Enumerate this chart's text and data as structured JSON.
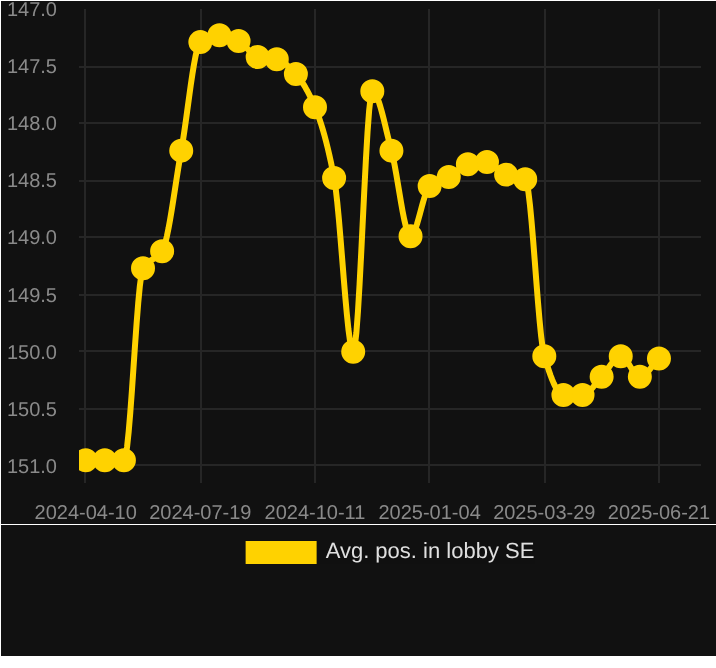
{
  "chart_data": {
    "type": "line",
    "categories": [
      "2024-04-10",
      null,
      null,
      null,
      null,
      null,
      "2024-07-19",
      null,
      null,
      null,
      null,
      null,
      "2024-10-11",
      null,
      null,
      null,
      null,
      null,
      "2025-01-04",
      null,
      null,
      null,
      null,
      null,
      "2025-03-29",
      null,
      null,
      null,
      null,
      null,
      "2025-06-21"
    ],
    "series": [
      {
        "name": "Avg. pos. in lobby SE",
        "color": "#ffd200",
        "values": [
          150.95,
          150.95,
          150.95,
          149.27,
          149.12,
          148.24,
          147.29,
          147.23,
          147.28,
          147.42,
          147.44,
          147.57,
          147.86,
          148.48,
          150.0,
          147.72,
          148.24,
          148.99,
          148.55,
          148.47,
          148.36,
          148.34,
          148.45,
          148.49,
          150.04,
          150.38,
          150.38,
          150.22,
          150.04,
          150.22,
          150.06
        ]
      }
    ],
    "ylim": [
      151.15,
      147.0
    ],
    "yticks": [
      {
        "value": 147,
        "label": "147.0"
      },
      {
        "value": 147.5,
        "label": "147.5"
      },
      {
        "value": 148,
        "label": "148.0"
      },
      {
        "value": 148.5,
        "label": "148.5"
      },
      {
        "value": 149,
        "label": "149.0"
      },
      {
        "value": 149.5,
        "label": "149.5"
      },
      {
        "value": 150,
        "label": "150.0"
      },
      {
        "value": 150.5,
        "label": "150.5"
      },
      {
        "value": 151,
        "label": "151.0"
      }
    ],
    "grid": true,
    "legend": "bottom",
    "marker": "circle",
    "line_style": "solid"
  }
}
